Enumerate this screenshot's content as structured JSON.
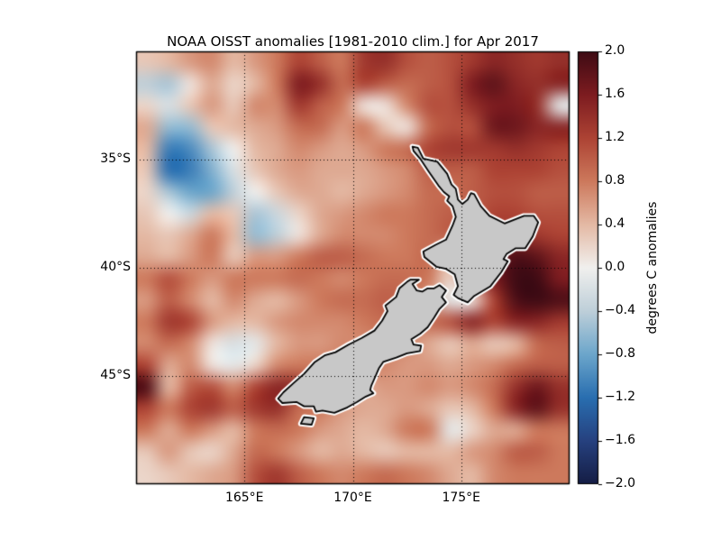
{
  "chart_data": {
    "type": "heatmap",
    "title": "NOAA OISST anomalies [1981-2010 clim.] for Apr 2017",
    "grid_on": true,
    "extent": {
      "lon_min": 160,
      "lon_max": 180,
      "lat_min_S": 30,
      "lat_max_S": 50
    },
    "x_ticks": [
      {
        "label": "165°E",
        "lon": 165
      },
      {
        "label": "170°E",
        "lon": 170
      },
      {
        "label": "175°E",
        "lon": 175
      }
    ],
    "y_ticks": [
      {
        "label": "35°S",
        "lat_S": 35
      },
      {
        "label": "40°S",
        "lat_S": 40
      },
      {
        "label": "45°S",
        "lat_S": 45
      }
    ],
    "colorbar": {
      "label": "degrees C anomalies",
      "vmin": -2.0,
      "vmax": 2.0,
      "tick_labels": [
        "2.0",
        "1.6",
        "1.2",
        "0.8",
        "0.4",
        "0.0",
        "−0.4",
        "−0.8",
        "−1.2",
        "−1.6",
        "−2.0"
      ],
      "tick_values": [
        2.0,
        1.6,
        1.2,
        0.8,
        0.4,
        0.0,
        -0.4,
        -0.8,
        -1.2,
        -1.6,
        -2.0
      ]
    },
    "colormap_stops": [
      {
        "value": -2.0,
        "color": "#151d44"
      },
      {
        "value": -1.6,
        "color": "#26417f"
      },
      {
        "value": -1.2,
        "color": "#296eb0"
      },
      {
        "value": -0.8,
        "color": "#6ca6cb"
      },
      {
        "value": -0.4,
        "color": "#becfd9"
      },
      {
        "value": 0.0,
        "color": "#f1f0ee"
      },
      {
        "value": 0.4,
        "color": "#e4b9a4"
      },
      {
        "value": 0.8,
        "color": "#cd795c"
      },
      {
        "value": 1.2,
        "color": "#ad4334"
      },
      {
        "value": 1.6,
        "color": "#7d1c20"
      },
      {
        "value": 2.0,
        "color": "#3e0b14"
      }
    ],
    "grid_lon_centers": [
      160.5,
      161.5,
      162.5,
      163.5,
      164.5,
      165.5,
      166.5,
      167.5,
      168.5,
      169.5,
      170.5,
      171.5,
      172.5,
      173.5,
      174.5,
      175.5,
      176.5,
      177.5,
      178.5,
      179.5
    ],
    "grid_lat_centers_S": [
      30.5,
      31.5,
      32.5,
      33.5,
      34.5,
      35.5,
      36.5,
      37.5,
      38.5,
      39.5,
      40.5,
      41.5,
      42.5,
      43.5,
      44.5,
      45.5,
      46.5,
      47.5,
      48.5,
      49.5
    ],
    "anomaly_grid_degC": [
      [
        0.3,
        0.4,
        0.6,
        0.7,
        0.4,
        0.6,
        0.8,
        1.2,
        1.0,
        0.8,
        1.3,
        1.4,
        1.1,
        1.0,
        1.1,
        1.3,
        1.5,
        1.4,
        1.3,
        1.4
      ],
      [
        -0.4,
        -0.5,
        0.1,
        0.5,
        0.2,
        0.4,
        0.8,
        1.6,
        1.4,
        0.9,
        1.2,
        1.0,
        0.9,
        1.0,
        1.1,
        1.6,
        1.8,
        1.5,
        1.4,
        1.5
      ],
      [
        0.2,
        -0.2,
        0.3,
        0.6,
        0.3,
        0.7,
        0.7,
        1.3,
        1.0,
        0.8,
        0.1,
        0.1,
        0.7,
        1.1,
        1.1,
        1.4,
        1.6,
        1.6,
        1.4,
        -0.1
      ],
      [
        0.5,
        -0.6,
        -0.6,
        0.3,
        0.4,
        0.5,
        0.6,
        0.9,
        0.9,
        0.6,
        0.8,
        0.3,
        0.1,
        0.9,
        1.1,
        1.1,
        1.7,
        1.7,
        1.5,
        1.5
      ],
      [
        0.4,
        -1.1,
        -1.0,
        -0.5,
        0.0,
        0.4,
        0.5,
        0.7,
        0.6,
        0.5,
        0.6,
        0.8,
        0.9,
        1.2,
        1.3,
        1.3,
        1.3,
        1.4,
        1.3,
        1.2
      ],
      [
        0.3,
        -1.2,
        -1.1,
        -0.7,
        -0.2,
        0.3,
        0.5,
        0.6,
        0.5,
        0.5,
        0.5,
        0.6,
        0.7,
        1.0,
        1.0,
        1.0,
        1.2,
        1.2,
        1.2,
        1.1
      ],
      [
        0.2,
        -0.5,
        -0.8,
        -0.8,
        -0.4,
        0.0,
        0.3,
        0.5,
        0.5,
        0.4,
        0.5,
        0.6,
        0.7,
        0.9,
        0.9,
        1.0,
        1.1,
        1.1,
        1.0,
        1.0
      ],
      [
        0.3,
        0.0,
        -0.3,
        0.4,
        0.3,
        -0.5,
        -0.3,
        0.2,
        0.5,
        0.6,
        0.7,
        0.8,
        0.8,
        0.9,
        1.0,
        1.0,
        1.2,
        1.2,
        1.1,
        1.1
      ],
      [
        0.4,
        0.3,
        0.5,
        0.8,
        0.4,
        -0.6,
        -0.4,
        0.1,
        0.5,
        0.7,
        0.7,
        0.7,
        0.8,
        0.9,
        1.0,
        1.1,
        1.3,
        1.4,
        1.3,
        1.2
      ],
      [
        0.5,
        0.4,
        0.6,
        0.8,
        0.3,
        0.6,
        0.6,
        0.8,
        1.0,
        1.0,
        0.9,
        0.8,
        0.8,
        0.9,
        0.4,
        1.2,
        1.6,
        1.9,
        1.8,
        1.5
      ],
      [
        0.8,
        1.1,
        0.8,
        0.6,
        0.8,
        0.8,
        0.8,
        0.9,
        0.8,
        0.7,
        0.8,
        0.9,
        0.9,
        0.8,
        0.2,
        1.0,
        1.6,
        2.0,
        2.0,
        1.6
      ],
      [
        0.6,
        1.0,
        0.7,
        0.4,
        0.7,
        0.5,
        0.4,
        0.6,
        0.8,
        0.9,
        0.9,
        1.0,
        0.9,
        0.6,
        -0.1,
        0.1,
        1.2,
        1.9,
        2.0,
        1.9
      ],
      [
        0.8,
        1.3,
        1.2,
        0.6,
        0.4,
        0.4,
        0.6,
        0.7,
        0.7,
        0.7,
        0.8,
        0.9,
        0.8,
        0.9,
        1.1,
        1.5,
        1.2,
        1.5,
        1.5,
        1.3
      ],
      [
        0.7,
        0.9,
        0.7,
        0.1,
        -0.2,
        -0.1,
        0.4,
        0.6,
        0.6,
        0.7,
        0.7,
        0.8,
        0.7,
        0.5,
        0.3,
        0.5,
        0.3,
        0.4,
        0.9,
        1.0
      ],
      [
        1.2,
        0.5,
        0.7,
        0.1,
        -0.1,
        0.2,
        0.7,
        0.8,
        0.8,
        0.8,
        0.8,
        0.7,
        0.6,
        0.6,
        0.5,
        0.6,
        0.7,
        0.9,
        1.0,
        1.0
      ],
      [
        1.9,
        0.4,
        1.0,
        1.1,
        0.7,
        1.2,
        1.5,
        1.4,
        0.8,
        0.6,
        0.5,
        0.6,
        0.6,
        0.7,
        0.6,
        0.7,
        0.9,
        1.4,
        1.7,
        1.4
      ],
      [
        1.2,
        0.8,
        1.2,
        1.3,
        1.0,
        1.3,
        1.4,
        0.9,
        0.8,
        0.6,
        0.5,
        0.5,
        0.6,
        0.5,
        0.3,
        0.4,
        0.8,
        1.5,
        1.8,
        1.4
      ],
      [
        0.8,
        0.5,
        0.8,
        0.6,
        0.4,
        0.8,
        0.9,
        0.8,
        0.6,
        0.5,
        0.4,
        0.5,
        0.8,
        0.8,
        -0.1,
        0.2,
        0.5,
        0.5,
        0.8,
        0.8
      ],
      [
        0.3,
        0.6,
        0.3,
        0.2,
        0.5,
        0.9,
        0.8,
        0.6,
        0.4,
        0.5,
        0.4,
        0.3,
        0.4,
        0.4,
        0.4,
        0.6,
        0.7,
        1.0,
        1.0,
        0.8
      ],
      [
        0.2,
        0.3,
        0.4,
        0.5,
        0.6,
        1.1,
        1.3,
        1.0,
        0.8,
        0.7,
        0.8,
        0.9,
        0.8,
        0.7,
        0.5,
        0.4,
        0.7,
        0.8,
        0.8,
        0.8
      ]
    ],
    "land": {
      "fill": "#c8c8c8",
      "outline": "#000000",
      "masked_coast_halo": "#ffffff",
      "polygons": {
        "north_island": [
          [
            172.75,
            34.4
          ],
          [
            173.0,
            34.45
          ],
          [
            173.25,
            34.95
          ],
          [
            173.9,
            35.1
          ],
          [
            174.35,
            35.65
          ],
          [
            174.55,
            36.15
          ],
          [
            174.75,
            36.35
          ],
          [
            174.85,
            36.85
          ],
          [
            175.05,
            37.05
          ],
          [
            175.3,
            36.85
          ],
          [
            175.45,
            36.55
          ],
          [
            175.6,
            36.6
          ],
          [
            175.9,
            37.15
          ],
          [
            176.3,
            37.6
          ],
          [
            177.0,
            37.95
          ],
          [
            177.9,
            37.6
          ],
          [
            178.35,
            37.6
          ],
          [
            178.55,
            37.9
          ],
          [
            178.3,
            38.55
          ],
          [
            177.95,
            39.1
          ],
          [
            177.5,
            39.1
          ],
          [
            177.1,
            39.35
          ],
          [
            176.95,
            39.6
          ],
          [
            177.15,
            39.7
          ],
          [
            176.85,
            40.2
          ],
          [
            176.35,
            40.85
          ],
          [
            175.6,
            41.3
          ],
          [
            175.3,
            41.6
          ],
          [
            174.85,
            41.4
          ],
          [
            174.65,
            41.25
          ],
          [
            174.85,
            40.85
          ],
          [
            174.7,
            40.3
          ],
          [
            174.3,
            40.05
          ],
          [
            173.85,
            39.95
          ],
          [
            173.3,
            39.5
          ],
          [
            173.25,
            39.25
          ],
          [
            173.8,
            38.95
          ],
          [
            174.3,
            38.7
          ],
          [
            174.6,
            38.05
          ],
          [
            174.75,
            37.65
          ],
          [
            174.6,
            37.15
          ],
          [
            174.35,
            36.9
          ],
          [
            174.45,
            36.7
          ],
          [
            174.2,
            36.5
          ],
          [
            173.95,
            36.2
          ],
          [
            173.5,
            35.55
          ],
          [
            173.1,
            34.95
          ],
          [
            172.8,
            34.6
          ]
        ],
        "south_island": [
          [
            172.65,
            40.55
          ],
          [
            173.05,
            40.55
          ],
          [
            172.75,
            40.75
          ],
          [
            172.95,
            41.05
          ],
          [
            173.2,
            41.1
          ],
          [
            173.45,
            40.95
          ],
          [
            173.75,
            40.95
          ],
          [
            174.0,
            40.8
          ],
          [
            174.3,
            41.05
          ],
          [
            174.1,
            41.35
          ],
          [
            174.3,
            41.6
          ],
          [
            174.0,
            41.9
          ],
          [
            173.75,
            42.3
          ],
          [
            173.45,
            42.75
          ],
          [
            173.1,
            43.05
          ],
          [
            172.7,
            43.3
          ],
          [
            172.8,
            43.55
          ],
          [
            173.15,
            43.6
          ],
          [
            173.1,
            43.85
          ],
          [
            172.5,
            43.95
          ],
          [
            172.0,
            44.15
          ],
          [
            171.4,
            44.35
          ],
          [
            171.2,
            44.65
          ],
          [
            171.05,
            45.0
          ],
          [
            170.85,
            45.45
          ],
          [
            170.8,
            45.65
          ],
          [
            170.95,
            45.8
          ],
          [
            170.6,
            45.95
          ],
          [
            170.2,
            46.2
          ],
          [
            169.75,
            46.45
          ],
          [
            169.15,
            46.7
          ],
          [
            168.6,
            46.6
          ],
          [
            168.3,
            46.65
          ],
          [
            168.2,
            46.4
          ],
          [
            167.75,
            46.4
          ],
          [
            167.4,
            46.2
          ],
          [
            166.75,
            46.25
          ],
          [
            166.55,
            46.05
          ],
          [
            166.8,
            45.75
          ],
          [
            167.3,
            45.3
          ],
          [
            167.75,
            44.9
          ],
          [
            168.25,
            44.35
          ],
          [
            168.7,
            44.05
          ],
          [
            169.2,
            43.9
          ],
          [
            169.8,
            43.55
          ],
          [
            170.4,
            43.25
          ],
          [
            171.0,
            42.9
          ],
          [
            171.35,
            42.45
          ],
          [
            171.6,
            42.0
          ],
          [
            171.5,
            41.75
          ],
          [
            172.0,
            41.35
          ],
          [
            172.15,
            40.95
          ],
          [
            172.5,
            40.65
          ]
        ],
        "stewart_island": [
          [
            167.75,
            46.9
          ],
          [
            168.2,
            46.95
          ],
          [
            168.1,
            47.25
          ],
          [
            167.6,
            47.2
          ]
        ]
      }
    }
  }
}
